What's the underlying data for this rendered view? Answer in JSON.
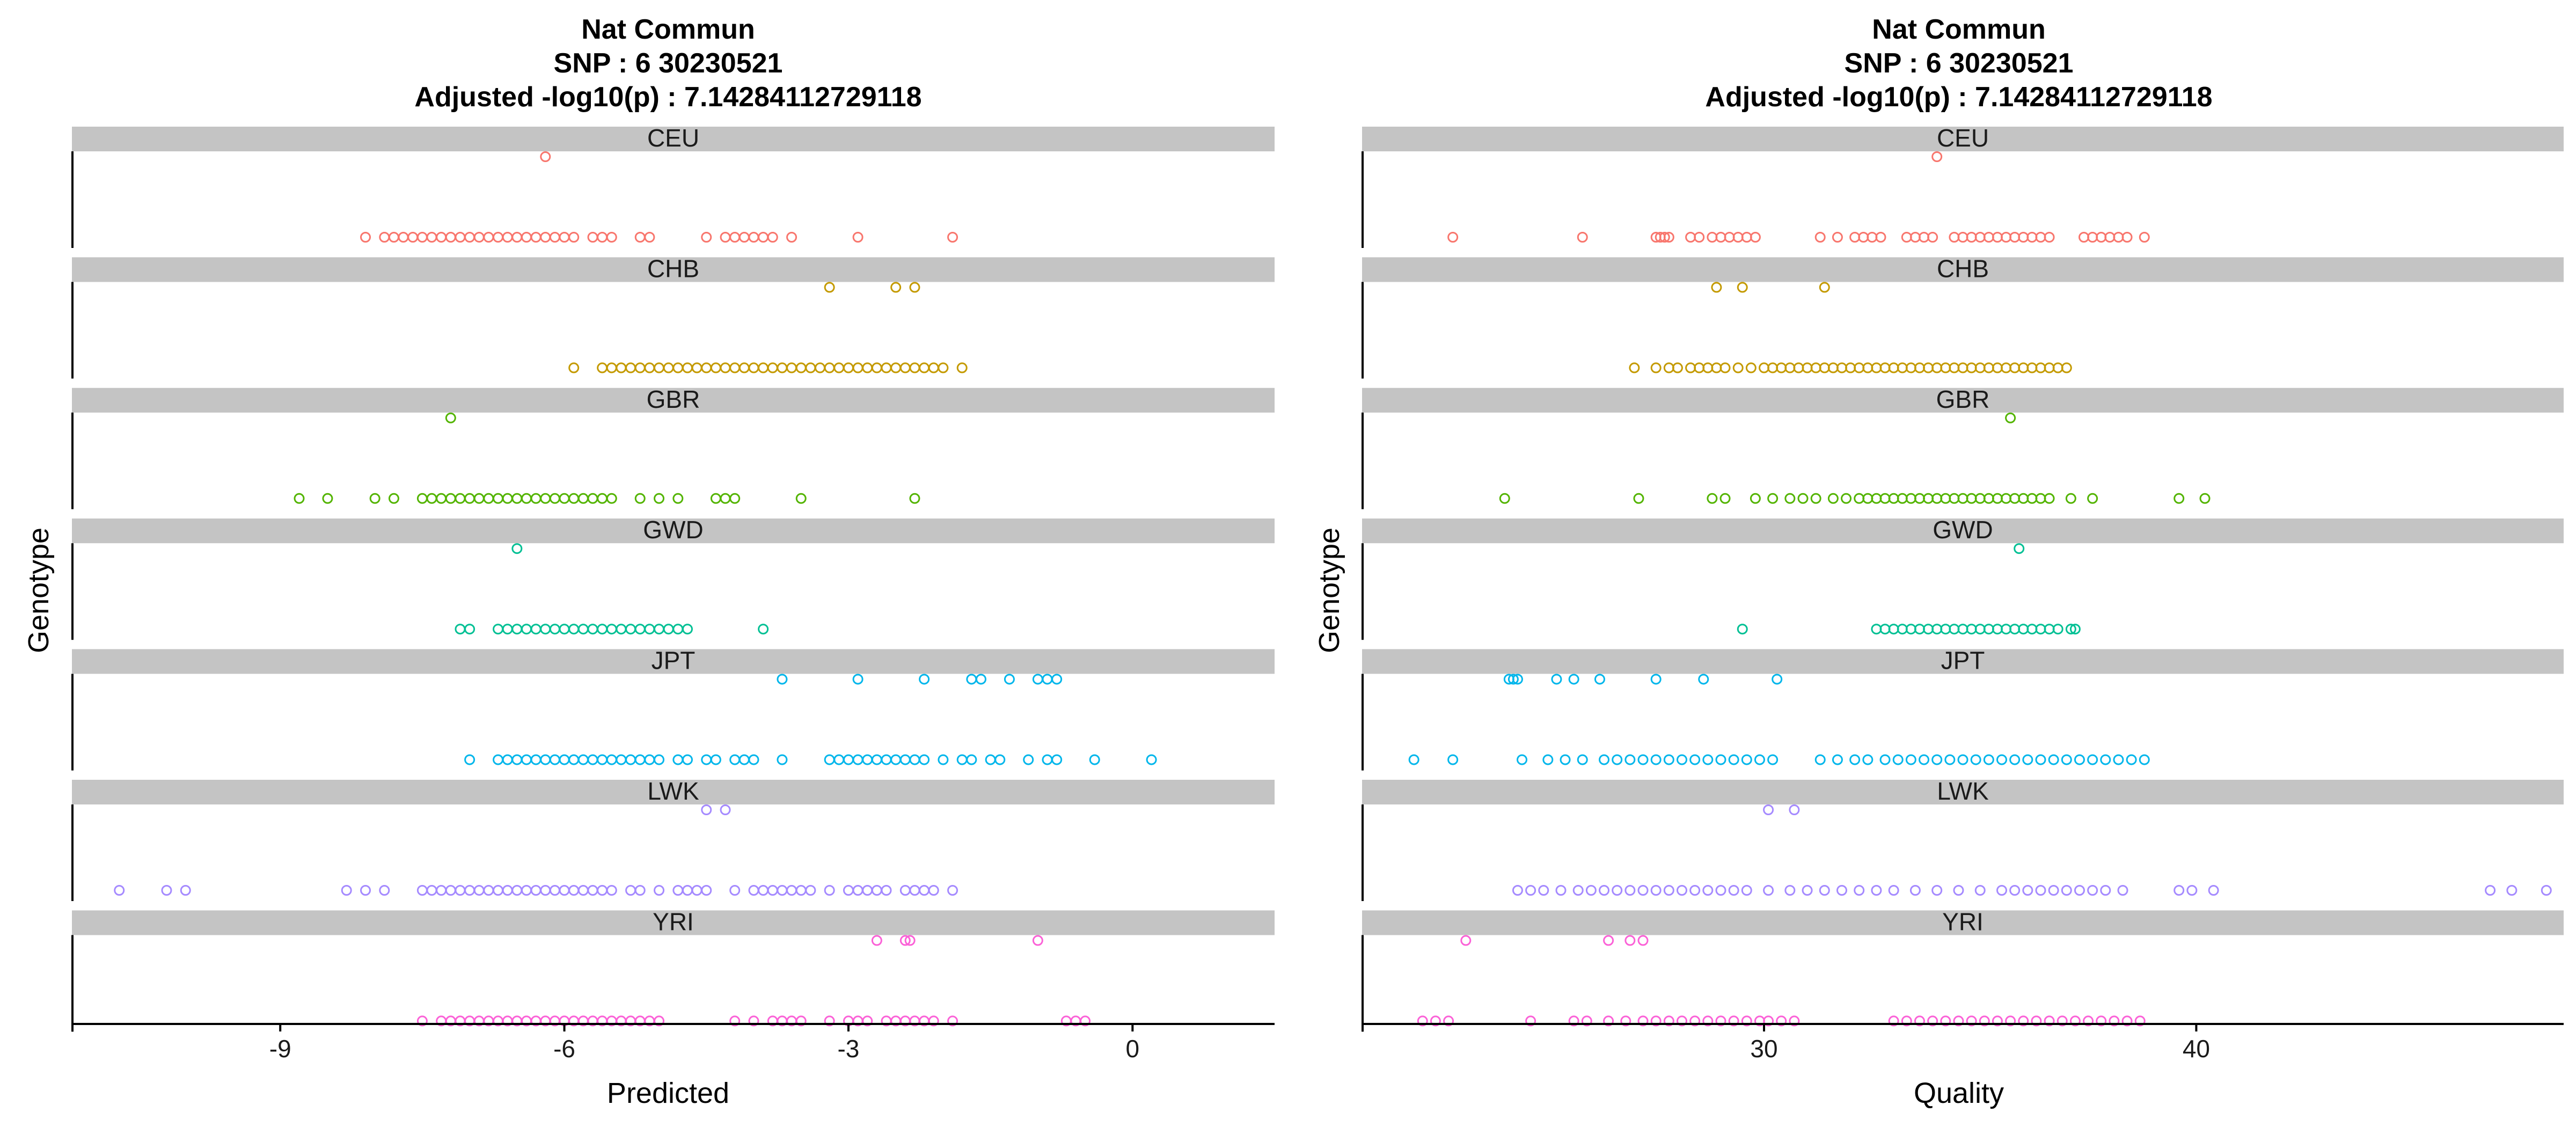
{
  "chart_data": [
    {
      "type": "scatter",
      "title_lines": [
        "Nat Commun",
        "SNP :  6 30230521",
        "Adjusted -log10(p) :  7.14284112729118"
      ],
      "xlabel": "Predicted",
      "ylabel": "Genotype",
      "xlim": [
        -11.2,
        1.5
      ],
      "xticks": [
        -9,
        -6,
        -3,
        0
      ],
      "tick_labels": [
        "-9",
        "-6",
        "-3",
        "0"
      ],
      "grid": false,
      "facets": [
        {
          "label": "CEU",
          "color": "#F8766D",
          "rows": [
            [
              -6.2
            ],
            [
              -8.1,
              -7.9,
              -7.8,
              -7.7,
              -7.6,
              -7.5,
              -7.4,
              -7.3,
              -7.2,
              -7.1,
              -7.0,
              -6.9,
              -6.8,
              -6.7,
              -6.6,
              -6.5,
              -6.4,
              -6.3,
              -6.2,
              -6.1,
              -6.0,
              -5.9,
              -5.7,
              -5.6,
              -5.5,
              -5.2,
              -5.1,
              -4.5,
              -4.3,
              -4.2,
              -4.1,
              -4.0,
              -3.9,
              -3.8,
              -3.6,
              -2.9,
              -1.9
            ]
          ]
        },
        {
          "label": "CHB",
          "color": "#C49A00",
          "rows": [
            [
              -3.2,
              -2.5,
              -2.3
            ],
            [
              -5.9,
              -5.6,
              -5.5,
              -5.4,
              -5.3,
              -5.2,
              -5.1,
              -5.0,
              -4.9,
              -4.8,
              -4.7,
              -4.6,
              -4.5,
              -4.4,
              -4.3,
              -4.2,
              -4.1,
              -4.0,
              -3.9,
              -3.8,
              -3.7,
              -3.6,
              -3.5,
              -3.4,
              -3.3,
              -3.2,
              -3.1,
              -3.0,
              -2.9,
              -2.8,
              -2.7,
              -2.6,
              -2.5,
              -2.4,
              -2.3,
              -2.2,
              -2.1,
              -2.0,
              -1.8
            ]
          ]
        },
        {
          "label": "GBR",
          "color": "#53B400",
          "rows": [
            [
              -7.2
            ],
            [
              -8.8,
              -8.5,
              -8.0,
              -7.8,
              -7.5,
              -7.4,
              -7.3,
              -7.2,
              -7.1,
              -7.0,
              -6.9,
              -6.8,
              -6.7,
              -6.6,
              -6.5,
              -6.4,
              -6.3,
              -6.2,
              -6.1,
              -6.0,
              -5.9,
              -5.8,
              -5.7,
              -5.6,
              -5.5,
              -5.2,
              -5.0,
              -4.8,
              -4.4,
              -4.3,
              -4.2,
              -3.5,
              -2.3
            ]
          ]
        },
        {
          "label": "GWD",
          "color": "#00C094",
          "rows": [
            [
              -6.5
            ],
            [
              -7.1,
              -7.0,
              -6.7,
              -6.6,
              -6.5,
              -6.4,
              -6.3,
              -6.2,
              -6.1,
              -6.0,
              -5.9,
              -5.8,
              -5.7,
              -5.6,
              -5.5,
              -5.4,
              -5.3,
              -5.2,
              -5.1,
              -5.0,
              -4.9,
              -4.8,
              -4.7,
              -3.9
            ]
          ]
        },
        {
          "label": "JPT",
          "color": "#00B6EB",
          "rows": [
            [
              -3.7,
              -2.9,
              -2.2,
              -1.7,
              -1.6,
              -1.3,
              -1.0,
              -0.9,
              -0.8
            ],
            [
              -7.0,
              -6.7,
              -6.6,
              -6.5,
              -6.4,
              -6.3,
              -6.2,
              -6.1,
              -6.0,
              -5.9,
              -5.8,
              -5.7,
              -5.6,
              -5.5,
              -5.4,
              -5.3,
              -5.2,
              -5.1,
              -5.0,
              -4.8,
              -4.7,
              -4.5,
              -4.4,
              -4.2,
              -4.1,
              -4.0,
              -3.7,
              -3.2,
              -3.1,
              -3.0,
              -2.9,
              -2.8,
              -2.7,
              -2.6,
              -2.5,
              -2.4,
              -2.3,
              -2.2,
              -2.0,
              -1.8,
              -1.7,
              -1.5,
              -1.4,
              -1.1,
              -0.9,
              -0.8,
              -0.4,
              0.2
            ]
          ]
        },
        {
          "label": "LWK",
          "color": "#A58AFF",
          "rows": [
            [
              -4.5,
              -4.3
            ],
            [
              -10.7,
              -10.2,
              -10.0,
              -8.3,
              -8.1,
              -7.9,
              -7.5,
              -7.4,
              -7.3,
              -7.2,
              -7.1,
              -7.0,
              -6.9,
              -6.8,
              -6.7,
              -6.6,
              -6.5,
              -6.4,
              -6.3,
              -6.2,
              -6.1,
              -6.0,
              -5.9,
              -5.8,
              -5.7,
              -5.6,
              -5.5,
              -5.3,
              -5.2,
              -5.0,
              -4.8,
              -4.7,
              -4.6,
              -4.5,
              -4.2,
              -4.0,
              -3.9,
              -3.8,
              -3.7,
              -3.6,
              -3.5,
              -3.4,
              -3.2,
              -3.0,
              -2.9,
              -2.8,
              -2.7,
              -2.6,
              -2.4,
              -2.3,
              -2.2,
              -2.1,
              -1.9
            ]
          ]
        },
        {
          "label": "YRI",
          "color": "#FB61D7",
          "rows": [
            [
              -2.7,
              -2.4,
              -2.35,
              -1.0
            ],
            [
              -7.5,
              -7.3,
              -7.2,
              -7.1,
              -7.0,
              -6.9,
              -6.8,
              -6.7,
              -6.6,
              -6.5,
              -6.4,
              -6.3,
              -6.2,
              -6.1,
              -6.0,
              -5.9,
              -5.8,
              -5.7,
              -5.6,
              -5.5,
              -5.4,
              -5.3,
              -5.2,
              -5.1,
              -5.0,
              -4.2,
              -4.0,
              -3.8,
              -3.7,
              -3.6,
              -3.5,
              -3.2,
              -3.0,
              -2.9,
              -2.8,
              -2.6,
              -2.5,
              -2.4,
              -2.3,
              -2.2,
              -2.1,
              -1.9,
              -0.7,
              -0.6,
              -0.5
            ]
          ]
        }
      ]
    },
    {
      "type": "scatter",
      "title_lines": [
        "Nat Commun",
        "SNP :  6 30230521",
        "Adjusted -log10(p) :  7.14284112729118"
      ],
      "xlabel": "Quality",
      "ylabel": "Genotype",
      "xlim": [
        20.7,
        48.5
      ],
      "xticks": [
        30,
        40
      ],
      "tick_labels": [
        "30",
        "40"
      ],
      "grid": false,
      "facets": [
        {
          "label": "CEU",
          "color": "#F8766D",
          "rows": [
            [
              34.0
            ],
            [
              22.8,
              25.8,
              27.5,
              27.6,
              27.7,
              27.8,
              28.3,
              28.5,
              28.8,
              29.0,
              29.2,
              29.4,
              29.6,
              29.8,
              31.3,
              31.7,
              32.1,
              32.3,
              32.5,
              32.7,
              33.3,
              33.5,
              33.7,
              33.9,
              34.4,
              34.6,
              34.8,
              35.0,
              35.2,
              35.4,
              35.6,
              35.8,
              36.0,
              36.2,
              36.4,
              36.6,
              37.4,
              37.6,
              37.8,
              38.0,
              38.2,
              38.4,
              38.8
            ]
          ]
        },
        {
          "label": "CHB",
          "color": "#C49A00",
          "rows": [
            [
              28.9,
              29.5,
              31.4
            ],
            [
              27.0,
              27.5,
              27.8,
              28.0,
              28.3,
              28.5,
              28.7,
              28.9,
              29.1,
              29.4,
              29.7,
              30.0,
              30.2,
              30.4,
              30.6,
              30.8,
              31.0,
              31.2,
              31.4,
              31.6,
              31.8,
              32.0,
              32.2,
              32.4,
              32.6,
              32.8,
              33.0,
              33.2,
              33.4,
              33.6,
              33.8,
              34.0,
              34.2,
              34.4,
              34.6,
              34.8,
              35.0,
              35.2,
              35.4,
              35.6,
              35.8,
              36.0,
              36.2,
              36.4,
              36.6,
              36.8,
              37.0
            ]
          ]
        },
        {
          "label": "GBR",
          "color": "#53B400",
          "rows": [
            [
              35.7
            ],
            [
              24.0,
              27.1,
              28.8,
              29.1,
              29.8,
              30.2,
              30.6,
              30.9,
              31.2,
              31.6,
              31.9,
              32.2,
              32.4,
              32.6,
              32.8,
              33.0,
              33.2,
              33.4,
              33.6,
              33.8,
              34.0,
              34.2,
              34.4,
              34.6,
              34.8,
              35.0,
              35.2,
              35.4,
              35.6,
              35.8,
              36.0,
              36.2,
              36.4,
              36.6,
              37.1,
              37.6,
              39.6,
              40.2
            ]
          ]
        },
        {
          "label": "GWD",
          "color": "#00C094",
          "rows": [
            [
              35.9
            ],
            [
              29.5,
              32.6,
              32.8,
              33.0,
              33.2,
              33.4,
              33.6,
              33.8,
              34.0,
              34.2,
              34.4,
              34.6,
              34.8,
              35.0,
              35.2,
              35.4,
              35.6,
              35.8,
              36.0,
              36.2,
              36.4,
              36.6,
              36.8,
              37.1,
              37.2
            ]
          ]
        },
        {
          "label": "JPT",
          "color": "#00B6EB",
          "rows": [
            [
              24.1,
              24.2,
              24.3,
              25.2,
              25.6,
              26.2,
              27.5,
              28.6,
              30.3
            ],
            [
              21.9,
              22.8,
              24.4,
              25.0,
              25.4,
              25.8,
              26.3,
              26.6,
              26.9,
              27.2,
              27.5,
              27.8,
              28.1,
              28.4,
              28.7,
              29.0,
              29.3,
              29.6,
              29.9,
              30.2,
              31.3,
              31.7,
              32.1,
              32.4,
              32.8,
              33.1,
              33.4,
              33.7,
              34.0,
              34.3,
              34.6,
              34.9,
              35.2,
              35.5,
              35.8,
              36.1,
              36.4,
              36.7,
              37.0,
              37.3,
              37.6,
              37.9,
              38.2,
              38.5,
              38.8
            ]
          ]
        },
        {
          "label": "LWK",
          "color": "#A58AFF",
          "rows": [
            [
              30.1,
              30.7
            ],
            [
              24.3,
              24.6,
              24.9,
              25.3,
              25.7,
              26.0,
              26.3,
              26.6,
              26.9,
              27.2,
              27.5,
              27.8,
              28.1,
              28.4,
              28.7,
              29.0,
              29.3,
              29.6,
              30.1,
              30.6,
              31.0,
              31.4,
              31.8,
              32.2,
              32.6,
              33.0,
              33.5,
              34.0,
              34.5,
              35.0,
              35.5,
              35.8,
              36.1,
              36.4,
              36.7,
              37.0,
              37.3,
              37.6,
              37.9,
              38.3,
              39.6,
              39.9,
              40.4,
              46.8,
              47.3,
              48.1
            ]
          ]
        },
        {
          "label": "YRI",
          "color": "#FB61D7",
          "rows": [
            [
              23.1,
              26.4,
              26.9,
              27.2
            ],
            [
              22.1,
              22.4,
              22.7,
              24.6,
              25.6,
              25.9,
              26.4,
              26.8,
              27.2,
              27.5,
              27.8,
              28.1,
              28.4,
              28.7,
              29.0,
              29.3,
              29.6,
              29.9,
              30.1,
              30.4,
              30.7,
              33.0,
              33.3,
              33.6,
              33.9,
              34.2,
              34.5,
              34.8,
              35.1,
              35.4,
              35.7,
              36.0,
              36.3,
              36.6,
              36.9,
              37.2,
              37.5,
              37.8,
              38.1,
              38.4,
              38.7
            ]
          ]
        }
      ]
    }
  ]
}
